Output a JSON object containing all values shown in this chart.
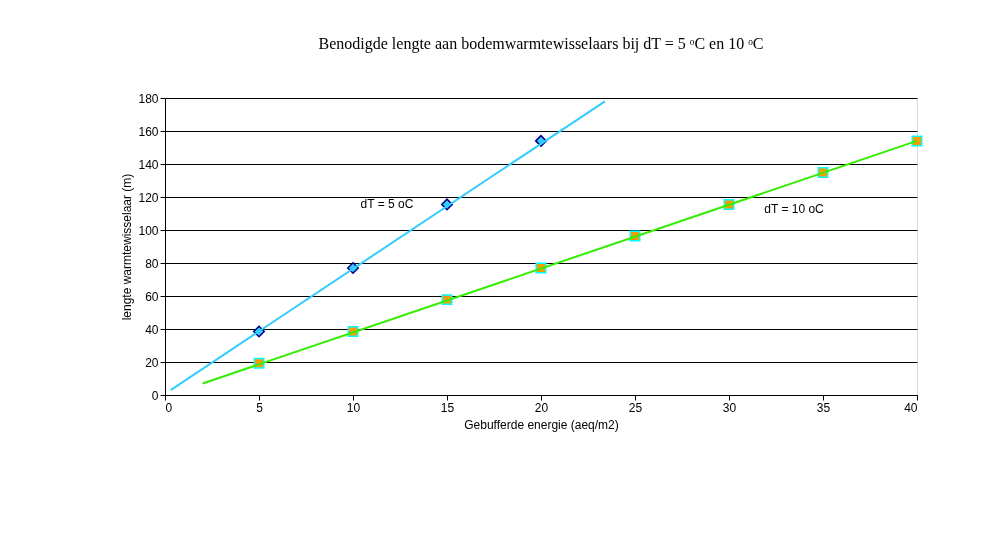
{
  "chart_data": {
    "type": "scatter",
    "title": "Benodigde lengte aan bodemwarmtewisselaars bij dT = 5 ᵒC en 10 ᵒC",
    "xlabel": "Gebufferde energie (aeq/m2)",
    "ylabel": "lengte warmtewisselaar (m)",
    "series": [
      {
        "name": "dT = 5 oC",
        "marker": "diamond",
        "color": "#33ccff",
        "x": [
          5,
          10,
          15,
          20
        ],
        "values": [
          38.5,
          77,
          115.5,
          154
        ]
      },
      {
        "name": "dT = 10 oC",
        "marker": "square",
        "color": "#ff9900",
        "x": [
          5,
          10,
          15,
          20,
          25,
          30,
          35,
          40
        ],
        "values": [
          19.3,
          38.5,
          57.8,
          77,
          96.3,
          115.5,
          134.8,
          154
        ]
      },
      {
        "type": "line",
        "marker": "none",
        "color": "#33ccff",
        "x": [
          0.3,
          23.4
        ],
        "values": [
          3,
          178
        ]
      },
      {
        "type": "line",
        "marker": "none",
        "color": "#33ee00",
        "x": [
          2,
          40
        ],
        "values": [
          7,
          154
        ]
      }
    ],
    "xlim": [
      0,
      40
    ],
    "xticks": [
      0,
      5,
      10,
      15,
      20,
      25,
      30,
      35,
      40
    ],
    "ylim": [
      0,
      180
    ],
    "yticks": [
      0,
      20,
      40,
      60,
      80,
      100,
      120,
      140,
      160,
      180
    ],
    "grid": "y"
  }
}
